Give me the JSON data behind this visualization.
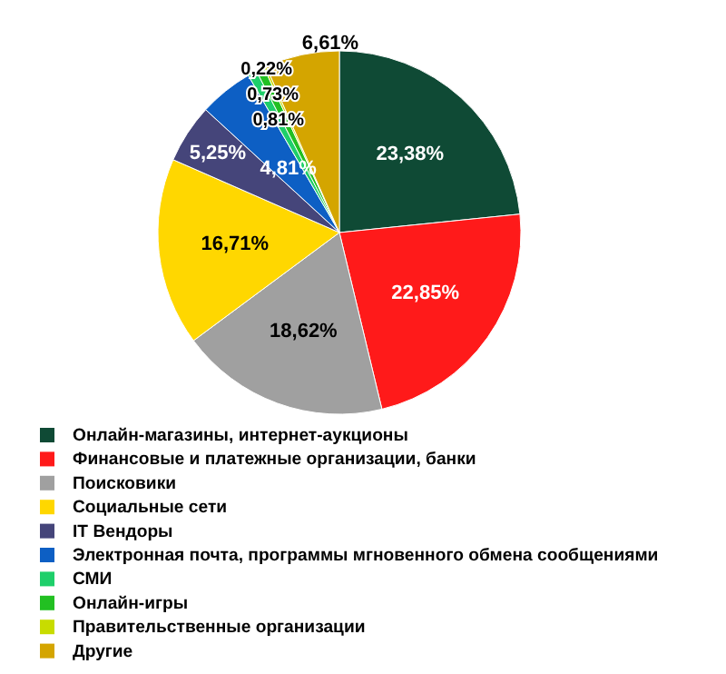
{
  "chart_data": {
    "type": "pie",
    "categories": [
      "Онлайн-магазины, интернет-аукционы",
      "Финансовые и платежные организации, банки",
      "Поисковики",
      "Социальные сети",
      "IT Вендоры",
      "Электронная почта, программы мгновенного обмена сообщениями",
      "СМИ",
      "Онлайн-игры",
      "Правительственные организации",
      "Другие"
    ],
    "values": [
      23.38,
      22.85,
      18.62,
      16.71,
      5.25,
      4.81,
      0.81,
      0.73,
      0.22,
      6.61
    ],
    "value_labels": [
      "23,38%",
      "22,85%",
      "18,62%",
      "16,71%",
      "5,25%",
      "4,81%",
      "0,81%",
      "0,73%",
      "0,22%",
      "6,61%"
    ],
    "colors": [
      "#0f4a35",
      "#ff1a1a",
      "#a0a0a0",
      "#ffd700",
      "#45457a",
      "#0d5fc4",
      "#1ecf6a",
      "#22c022",
      "#c8dc00",
      "#d4a500"
    ],
    "legend": "bottom"
  }
}
